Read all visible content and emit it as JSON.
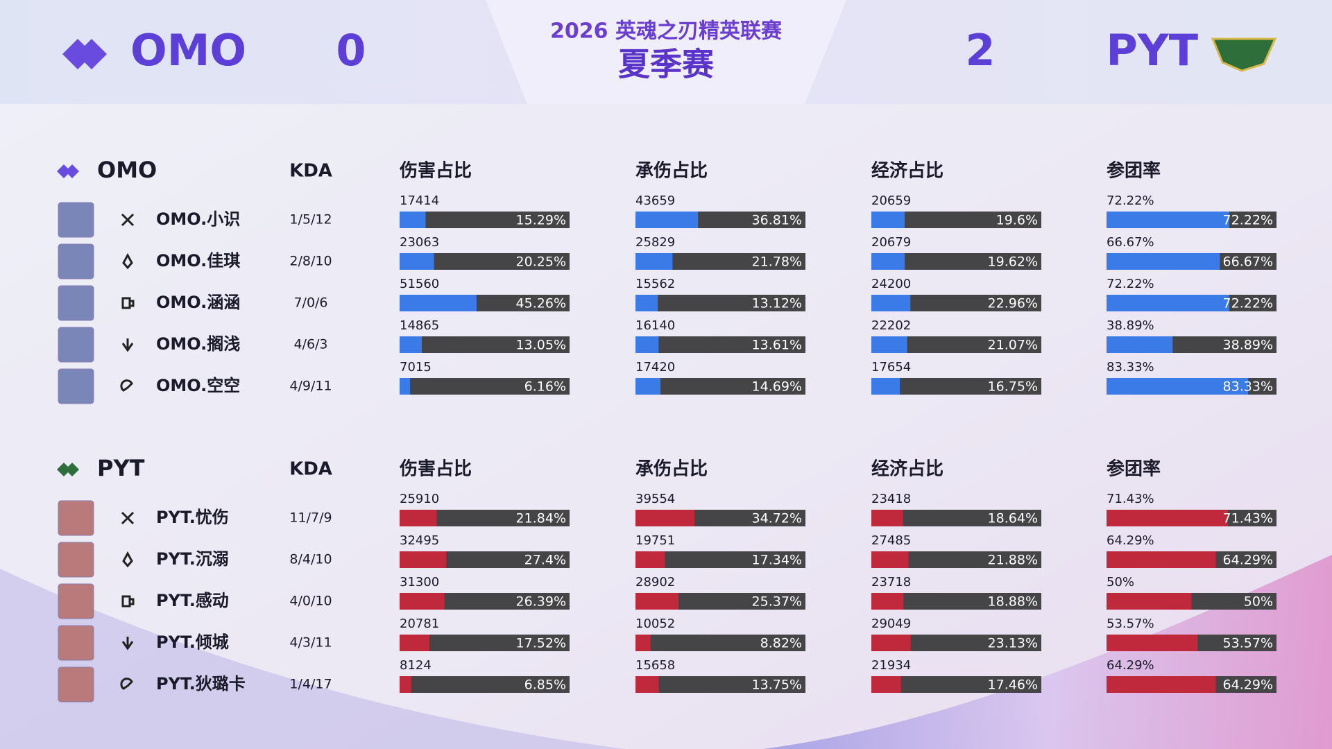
{
  "header": {
    "left_team": "OMO",
    "left_score": 0,
    "event": "2026 英魂之刃精英联赛",
    "stage": "夏季赛",
    "right_score": 2,
    "right_team": "PYT"
  },
  "teams": [
    {
      "name": "OMO",
      "color": "#3a7be8",
      "columns": [
        "KDA",
        "伤害占比",
        "承伤占比",
        "经济占比",
        "参团率"
      ],
      "players": [
        {
          "name": "OMO.小识",
          "kda": "1/5/12",
          "stats": [
            {
              "value": 17414,
              "share": 15.29,
              "label": "15.29%"
            },
            {
              "value": 43659,
              "share": 36.81,
              "label": "36.81%"
            },
            {
              "value": 20659,
              "share": 19.6,
              "label": "19.6%"
            },
            {
              "share": 72.22,
              "label": "72.22%"
            }
          ]
        },
        {
          "name": "OMO.佳琪",
          "kda": "2/8/10",
          "stats": [
            {
              "value": 23063,
              "share": 20.25,
              "label": "20.25%"
            },
            {
              "value": 25829,
              "share": 21.78,
              "label": "21.78%"
            },
            {
              "value": 20679,
              "share": 19.62,
              "label": "19.62%"
            },
            {
              "share": 66.67,
              "label": "66.67%"
            }
          ]
        },
        {
          "name": "OMO.涵涵",
          "kda": "7/0/6",
          "stats": [
            {
              "value": 51560,
              "share": 45.26,
              "label": "45.26%"
            },
            {
              "value": 15562,
              "share": 13.12,
              "label": "13.12%"
            },
            {
              "value": 24200,
              "share": 22.96,
              "label": "22.96%"
            },
            {
              "share": 72.22,
              "label": "72.22%"
            }
          ]
        },
        {
          "name": "OMO.搁浅",
          "kda": "4/6/3",
          "stats": [
            {
              "value": 14865,
              "share": 13.05,
              "label": "13.05%"
            },
            {
              "value": 16140,
              "share": 13.61,
              "label": "13.61%"
            },
            {
              "value": 22202,
              "share": 21.07,
              "label": "21.07%"
            },
            {
              "share": 38.89,
              "label": "38.89%"
            }
          ]
        },
        {
          "name": "OMO.空空",
          "kda": "4/9/11",
          "stats": [
            {
              "value": 7015,
              "share": 6.16,
              "label": "6.16%"
            },
            {
              "value": 17420,
              "share": 14.69,
              "label": "14.69%"
            },
            {
              "value": 17654,
              "share": 16.75,
              "label": "16.75%"
            },
            {
              "share": 83.33,
              "label": "83.33%"
            }
          ]
        }
      ]
    },
    {
      "name": "PYT",
      "color": "#c0283c",
      "columns": [
        "KDA",
        "伤害占比",
        "承伤占比",
        "经济占比",
        "参团率"
      ],
      "players": [
        {
          "name": "PYT.忧伤",
          "kda": "11/7/9",
          "stats": [
            {
              "value": 25910,
              "share": 21.84,
              "label": "21.84%"
            },
            {
              "value": 39554,
              "share": 34.72,
              "label": "34.72%"
            },
            {
              "value": 23418,
              "share": 18.64,
              "label": "18.64%"
            },
            {
              "share": 71.43,
              "label": "71.43%"
            }
          ]
        },
        {
          "name": "PYT.沉溺",
          "kda": "8/4/10",
          "stats": [
            {
              "value": 32495,
              "share": 27.4,
              "label": "27.4%"
            },
            {
              "value": 19751,
              "share": 17.34,
              "label": "17.34%"
            },
            {
              "value": 27485,
              "share": 21.88,
              "label": "21.88%"
            },
            {
              "share": 64.29,
              "label": "64.29%"
            }
          ]
        },
        {
          "name": "PYT.感动",
          "kda": "4/0/10",
          "stats": [
            {
              "value": 31300,
              "share": 26.39,
              "label": "26.39%"
            },
            {
              "value": 28902,
              "share": 25.37,
              "label": "25.37%"
            },
            {
              "value": 23718,
              "share": 18.88,
              "label": "18.88%"
            },
            {
              "share": 50,
              "label": "50%"
            }
          ]
        },
        {
          "name": "PYT.倾城",
          "kda": "4/3/11",
          "stats": [
            {
              "value": 20781,
              "share": 17.52,
              "label": "17.52%"
            },
            {
              "value": 10052,
              "share": 8.82,
              "label": "8.82%"
            },
            {
              "value": 29049,
              "share": 23.13,
              "label": "23.13%"
            },
            {
              "share": 53.57,
              "label": "53.57%"
            }
          ]
        },
        {
          "name": "PYT.狄璐卡",
          "kda": "1/4/17",
          "stats": [
            {
              "value": 8124,
              "share": 6.85,
              "label": "6.85%"
            },
            {
              "value": 15658,
              "share": 13.75,
              "label": "13.75%"
            },
            {
              "value": 21934,
              "share": 17.46,
              "label": "17.46%"
            },
            {
              "share": 64.29,
              "label": "64.29%"
            }
          ]
        }
      ]
    }
  ]
}
